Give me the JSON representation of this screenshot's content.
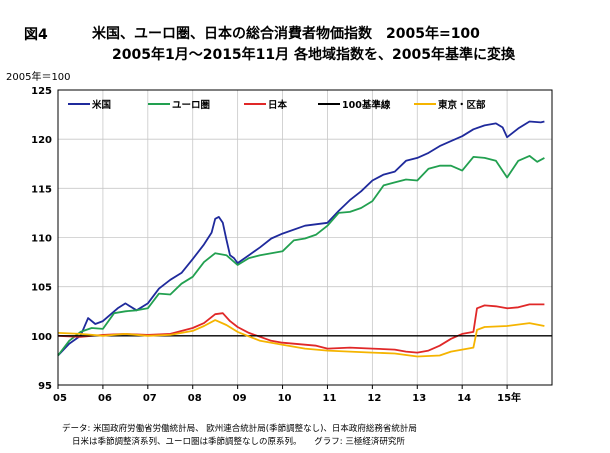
{
  "header": {
    "figure_label": "図4",
    "title_line1": "米国、ユーロ圏、日本の総合消費者物価指数　2005年=100",
    "title_line2": "2005年1月～2015年11月  各地域指数を、2005年基準に変換",
    "unit_label": "2005年＝100"
  },
  "footer": {
    "source_line1": "データ:  米国政府労働省労働統計局、 欧州連合統計局(季節調整なし)、日本政府総務省統計局",
    "source_line2": "日米は季節調整済系列、ユーロ圏は季節調整なしの原系列。　　グラフ:  三極経済研究所"
  },
  "chart_data": {
    "type": "line",
    "ylim": [
      95,
      125
    ],
    "yticks": [
      95,
      100,
      105,
      110,
      115,
      120,
      125
    ],
    "x_range": [
      2005.0,
      2016.0
    ],
    "xticks": [
      {
        "x": 2005,
        "label": "05"
      },
      {
        "x": 2006,
        "label": "06"
      },
      {
        "x": 2007,
        "label": "07"
      },
      {
        "x": 2008,
        "label": "08"
      },
      {
        "x": 2009,
        "label": "09"
      },
      {
        "x": 2010,
        "label": "10"
      },
      {
        "x": 2011,
        "label": "11"
      },
      {
        "x": 2012,
        "label": "12"
      },
      {
        "x": 2013,
        "label": "13"
      },
      {
        "x": 2014,
        "label": "14"
      },
      {
        "x": 2015,
        "label": "15年"
      }
    ],
    "grid": true,
    "legend_position": "top",
    "series": [
      {
        "name": "米国",
        "color": "#1f2a9c",
        "points": [
          [
            2005.0,
            98.0
          ],
          [
            2005.25,
            99.2
          ],
          [
            2005.5,
            100.0
          ],
          [
            2005.67,
            101.8
          ],
          [
            2005.83,
            101.2
          ],
          [
            2006.0,
            101.5
          ],
          [
            2006.33,
            102.8
          ],
          [
            2006.5,
            103.3
          ],
          [
            2006.75,
            102.6
          ],
          [
            2007.0,
            103.3
          ],
          [
            2007.25,
            104.8
          ],
          [
            2007.5,
            105.7
          ],
          [
            2007.75,
            106.4
          ],
          [
            2008.0,
            107.8
          ],
          [
            2008.25,
            109.3
          ],
          [
            2008.42,
            110.5
          ],
          [
            2008.5,
            111.9
          ],
          [
            2008.58,
            112.1
          ],
          [
            2008.67,
            111.5
          ],
          [
            2008.75,
            109.8
          ],
          [
            2008.83,
            108.2
          ],
          [
            2008.92,
            107.9
          ],
          [
            2009.0,
            107.4
          ],
          [
            2009.25,
            108.2
          ],
          [
            2009.5,
            109.0
          ],
          [
            2009.75,
            109.9
          ],
          [
            2010.0,
            110.4
          ],
          [
            2010.5,
            111.2
          ],
          [
            2011.0,
            111.5
          ],
          [
            2011.25,
            112.7
          ],
          [
            2011.5,
            113.8
          ],
          [
            2011.75,
            114.7
          ],
          [
            2012.0,
            115.8
          ],
          [
            2012.25,
            116.4
          ],
          [
            2012.5,
            116.7
          ],
          [
            2012.75,
            117.8
          ],
          [
            2013.0,
            118.1
          ],
          [
            2013.25,
            118.6
          ],
          [
            2013.5,
            119.3
          ],
          [
            2013.75,
            119.8
          ],
          [
            2014.0,
            120.3
          ],
          [
            2014.25,
            121.0
          ],
          [
            2014.5,
            121.4
          ],
          [
            2014.75,
            121.6
          ],
          [
            2014.9,
            121.2
          ],
          [
            2015.0,
            120.2
          ],
          [
            2015.25,
            121.1
          ],
          [
            2015.5,
            121.8
          ],
          [
            2015.75,
            121.7
          ],
          [
            2015.83,
            121.8
          ]
        ]
      },
      {
        "name": "ユーロ圏",
        "color": "#22a050",
        "points": [
          [
            2005.0,
            98.0
          ],
          [
            2005.25,
            99.5
          ],
          [
            2005.5,
            100.4
          ],
          [
            2005.75,
            100.8
          ],
          [
            2006.0,
            100.7
          ],
          [
            2006.25,
            102.3
          ],
          [
            2006.5,
            102.5
          ],
          [
            2006.75,
            102.6
          ],
          [
            2007.0,
            102.8
          ],
          [
            2007.25,
            104.3
          ],
          [
            2007.5,
            104.2
          ],
          [
            2007.75,
            105.3
          ],
          [
            2008.0,
            106.0
          ],
          [
            2008.25,
            107.5
          ],
          [
            2008.5,
            108.4
          ],
          [
            2008.75,
            108.2
          ],
          [
            2009.0,
            107.2
          ],
          [
            2009.25,
            107.9
          ],
          [
            2009.5,
            108.2
          ],
          [
            2009.75,
            108.4
          ],
          [
            2010.0,
            108.6
          ],
          [
            2010.25,
            109.7
          ],
          [
            2010.5,
            109.9
          ],
          [
            2010.75,
            110.3
          ],
          [
            2011.0,
            111.2
          ],
          [
            2011.25,
            112.5
          ],
          [
            2011.5,
            112.6
          ],
          [
            2011.75,
            113.0
          ],
          [
            2012.0,
            113.7
          ],
          [
            2012.25,
            115.3
          ],
          [
            2012.5,
            115.6
          ],
          [
            2012.75,
            115.9
          ],
          [
            2013.0,
            115.8
          ],
          [
            2013.25,
            117.0
          ],
          [
            2013.5,
            117.3
          ],
          [
            2013.75,
            117.3
          ],
          [
            2014.0,
            116.8
          ],
          [
            2014.25,
            118.2
          ],
          [
            2014.5,
            118.1
          ],
          [
            2014.75,
            117.8
          ],
          [
            2015.0,
            116.1
          ],
          [
            2015.25,
            117.8
          ],
          [
            2015.5,
            118.3
          ],
          [
            2015.67,
            117.7
          ],
          [
            2015.83,
            118.1
          ]
        ]
      },
      {
        "name": "日本",
        "color": "#e02828",
        "points": [
          [
            2005.0,
            100.0
          ],
          [
            2005.5,
            99.9
          ],
          [
            2006.0,
            100.1
          ],
          [
            2006.5,
            100.2
          ],
          [
            2007.0,
            100.1
          ],
          [
            2007.5,
            100.2
          ],
          [
            2008.0,
            100.8
          ],
          [
            2008.25,
            101.3
          ],
          [
            2008.5,
            102.2
          ],
          [
            2008.67,
            102.3
          ],
          [
            2008.83,
            101.5
          ],
          [
            2009.0,
            100.9
          ],
          [
            2009.25,
            100.3
          ],
          [
            2009.5,
            99.9
          ],
          [
            2009.75,
            99.5
          ],
          [
            2010.0,
            99.3
          ],
          [
            2010.5,
            99.1
          ],
          [
            2010.75,
            99.0
          ],
          [
            2011.0,
            98.7
          ],
          [
            2011.5,
            98.8
          ],
          [
            2012.0,
            98.7
          ],
          [
            2012.5,
            98.6
          ],
          [
            2012.75,
            98.4
          ],
          [
            2013.0,
            98.3
          ],
          [
            2013.25,
            98.5
          ],
          [
            2013.5,
            99.0
          ],
          [
            2013.75,
            99.7
          ],
          [
            2014.0,
            100.2
          ],
          [
            2014.25,
            100.4
          ],
          [
            2014.33,
            102.8
          ],
          [
            2014.5,
            103.1
          ],
          [
            2014.75,
            103.0
          ],
          [
            2015.0,
            102.8
          ],
          [
            2015.25,
            102.9
          ],
          [
            2015.5,
            103.2
          ],
          [
            2015.83,
            103.2
          ]
        ]
      },
      {
        "name": "100基準線",
        "color": "#000000",
        "points": [
          [
            2005.0,
            100.0
          ],
          [
            2016.0,
            100.0
          ]
        ]
      },
      {
        "name": "東京・区部",
        "color": "#f5b400",
        "points": [
          [
            2005.0,
            100.3
          ],
          [
            2005.5,
            100.2
          ],
          [
            2006.0,
            100.0
          ],
          [
            2006.5,
            100.2
          ],
          [
            2007.0,
            100.0
          ],
          [
            2007.5,
            100.1
          ],
          [
            2008.0,
            100.5
          ],
          [
            2008.25,
            101.0
          ],
          [
            2008.5,
            101.6
          ],
          [
            2008.75,
            101.1
          ],
          [
            2009.0,
            100.4
          ],
          [
            2009.5,
            99.5
          ],
          [
            2010.0,
            99.1
          ],
          [
            2010.5,
            98.7
          ],
          [
            2011.0,
            98.5
          ],
          [
            2011.5,
            98.4
          ],
          [
            2012.0,
            98.3
          ],
          [
            2012.5,
            98.2
          ],
          [
            2013.0,
            97.9
          ],
          [
            2013.5,
            98.0
          ],
          [
            2013.75,
            98.4
          ],
          [
            2014.0,
            98.6
          ],
          [
            2014.25,
            98.8
          ],
          [
            2014.33,
            100.6
          ],
          [
            2014.5,
            100.9
          ],
          [
            2015.0,
            101.0
          ],
          [
            2015.5,
            101.3
          ],
          [
            2015.83,
            101.0
          ]
        ]
      }
    ]
  }
}
